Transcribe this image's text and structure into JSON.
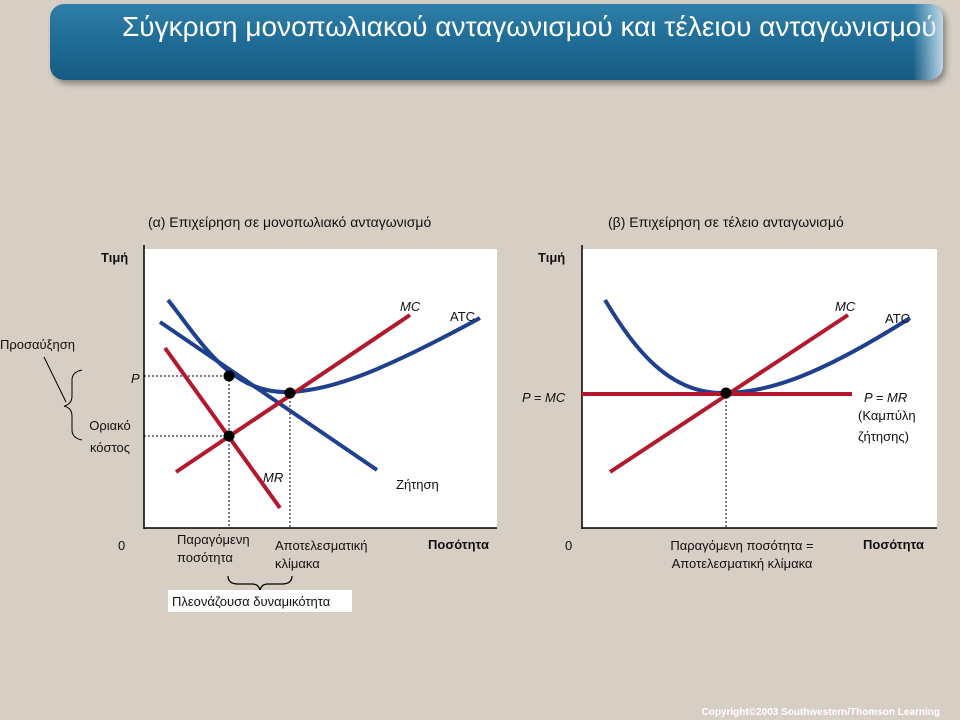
{
  "title": "Σύγκριση μονοπωλιακού ανταγωνισμού και τέλειου ανταγωνισμού",
  "copyright": "Copyright©2003  Southwestern/Thomson Learning",
  "panel_a": {
    "heading": "(α) Επιχείρηση σε μονοπωλιακό ανταγωνισμό",
    "y_axis_label": "Τιμή",
    "x_axis_label": "Ποσότητα",
    "origin": "0",
    "price_label": "P",
    "markup_label": "Προσαύξηση",
    "marginal_cost_label_1": "Οριακό",
    "marginal_cost_label_2": "κόστος",
    "mc_label": "MC",
    "atc_label": "ATC",
    "mr_label": "MR",
    "demand_label": "Ζήτηση",
    "qty_produced_1": "Παραγόμενη",
    "qty_produced_2": "ποσότητα",
    "efficient_scale_1": "Αποτελεσματική",
    "efficient_scale_2": "κλίμακα",
    "excess_capacity": "Πλεονάζουσα δυναμικότητα"
  },
  "panel_b": {
    "heading": "(β) Επιχείρηση σε τέλειο ανταγωνισμό",
    "y_axis_label": "Τιμή",
    "x_axis_label": "Ποσότητα",
    "origin": "0",
    "price_label": "P = MC",
    "mc_label": "MC",
    "atc_label": "ATC",
    "demand_label_1": "P = MR",
    "demand_label_2": "(Καμπύλη",
    "demand_label_3": "ζήτησης)",
    "qty_label_1": "Παραγόμενη ποσότητα =",
    "qty_label_2": "Αποτελεσματική κλίμακα"
  },
  "colors": {
    "blue_curve": "#1f3f8f",
    "red_curve": "#b3192d",
    "banner": "#1d6a94"
  }
}
